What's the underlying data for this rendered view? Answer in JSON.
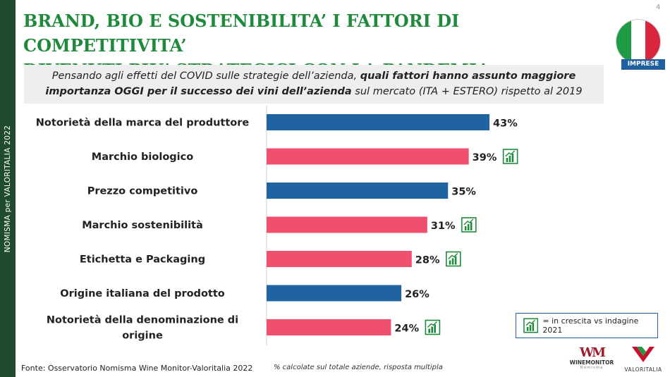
{
  "sidebar": {
    "text": "NOMISMA per VALORITALIA 2022"
  },
  "header": {
    "title": "BRAND, BIO E SOSTENIBILITA’ I FATTORI DI COMPETITIVITA’\nDIVENUTI PIU’ STRATEGICI CON LA PANDEMIA",
    "page_number": "4",
    "badge": "IMPRESE"
  },
  "question": {
    "part1": "Pensando agli effetti del COVID sulle strategie dell’azienda, ",
    "bold": "quali fattori hanno assunto maggiore importanza OGGI per il successo dei vini dell’azienda",
    "part2": " sul mercato (ITA + ESTERO) rispetto al 2019"
  },
  "colors": {
    "blue": "#1f64a0",
    "pink": "#f0506e",
    "green": "#1f8a3c",
    "flag_green": "#1f9a45",
    "flag_red": "#d7263d"
  },
  "chart_data": {
    "type": "bar",
    "orientation": "horizontal",
    "categories": [
      "Notorietà della marca del produttore",
      "Marchio biologico",
      "Prezzo competitivo",
      "Marchio sostenibilità",
      "Etichetta e Packaging",
      "Origine italiana del prodotto",
      "Notorietà della denominazione di origine"
    ],
    "values": [
      43,
      39,
      35,
      31,
      28,
      26,
      24
    ],
    "value_labels": [
      "43%",
      "39%",
      "35%",
      "31%",
      "28%",
      "26%",
      "24%"
    ],
    "bar_colors": [
      "blue",
      "pink",
      "blue",
      "pink",
      "pink",
      "blue",
      "pink"
    ],
    "growing": [
      false,
      true,
      false,
      true,
      true,
      false,
      true
    ],
    "unit": "%",
    "xlim": [
      0,
      55
    ]
  },
  "legend": {
    "text": "= in crescita vs indagine 2021",
    "icon": "growth-chart-icon"
  },
  "footer": {
    "source": "Fonte: Osservatorio Nomisma Wine Monitor-Valoritalia 2022",
    "note": "% calcolate sul totale aziende, risposta multipla"
  },
  "logos": {
    "winemonitor": {
      "mark": "WM",
      "name": "WINEMONITOR",
      "sub": "Nomisma"
    },
    "valoritalia": {
      "name": "VALORITALIA"
    }
  }
}
